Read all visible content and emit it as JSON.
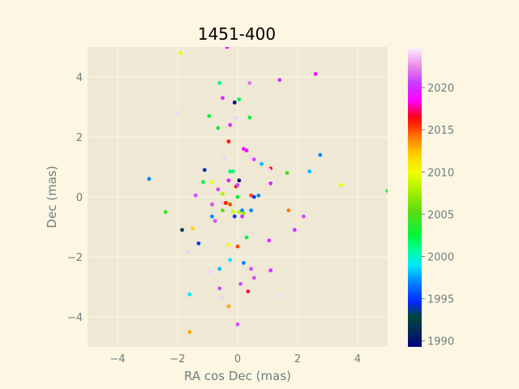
{
  "chart_data": {
    "type": "scatter",
    "title": "1451-400",
    "xlabel": "RA cos Dec (mas)",
    "ylabel": "Dec (mas)",
    "xlim": [
      -5,
      5
    ],
    "ylim": [
      -5,
      5
    ],
    "xticks": [
      "−4",
      "−2",
      "0",
      "2",
      "4"
    ],
    "yticks": [
      "−4",
      "−2",
      "0",
      "2",
      "4"
    ],
    "grid": true,
    "colorbar": {
      "range": [
        1989.3,
        2024.8
      ],
      "ticks": [
        "1990",
        "1995",
        "2000",
        "2005",
        "2010",
        "2015",
        "2020"
      ],
      "colormap": "gist_ncar"
    },
    "points": [
      {
        "x": -1.9,
        "y": 4.8,
        "year": 2010
      },
      {
        "x": -0.35,
        "y": 5.0,
        "year": 2019
      },
      {
        "x": -0.6,
        "y": 3.8,
        "year": 2001
      },
      {
        "x": -0.5,
        "y": 3.3,
        "year": 2020
      },
      {
        "x": 0.05,
        "y": 3.25,
        "year": 2002
      },
      {
        "x": 0.4,
        "y": 3.8,
        "year": 2022
      },
      {
        "x": 1.4,
        "y": 3.9,
        "year": 2020
      },
      {
        "x": 2.6,
        "y": 4.1,
        "year": 2019
      },
      {
        "x": -0.1,
        "y": 3.15,
        "year": 1990
      },
      {
        "x": -2.0,
        "y": 2.8,
        "year": 2024
      },
      {
        "x": -0.95,
        "y": 2.7,
        "year": 2003
      },
      {
        "x": -0.65,
        "y": 2.3,
        "year": 2003
      },
      {
        "x": -0.25,
        "y": 2.4,
        "year": 2020
      },
      {
        "x": -0.05,
        "y": 2.65,
        "year": 2024
      },
      {
        "x": 0.4,
        "y": 2.65,
        "year": 2003
      },
      {
        "x": -0.3,
        "y": 1.85,
        "year": 2016
      },
      {
        "x": 0.2,
        "y": 1.6,
        "year": 2019
      },
      {
        "x": 0.3,
        "y": 1.55,
        "year": 2019
      },
      {
        "x": 0.45,
        "y": 1.3,
        "year": 2024
      },
      {
        "x": 0.55,
        "y": 1.25,
        "year": 2021
      },
      {
        "x": 0.8,
        "y": 1.1,
        "year": 1998
      },
      {
        "x": 1.1,
        "y": 0.95,
        "year": 2016
      },
      {
        "x": 1.05,
        "y": 0.9,
        "year": 2024
      },
      {
        "x": 2.75,
        "y": 1.4,
        "year": 1997
      },
      {
        "x": 2.4,
        "y": 0.85,
        "year": 1998
      },
      {
        "x": 1.65,
        "y": 0.8,
        "year": 2005
      },
      {
        "x": -0.45,
        "y": 1.3,
        "year": 2024
      },
      {
        "x": -1.1,
        "y": 0.9,
        "year": 1994
      },
      {
        "x": -0.25,
        "y": 0.85,
        "year": 2002
      },
      {
        "x": -0.15,
        "y": 0.85,
        "year": 2001
      },
      {
        "x": 0.05,
        "y": 0.55,
        "year": 1990
      },
      {
        "x": -0.3,
        "y": 0.55,
        "year": 2019
      },
      {
        "x": -1.15,
        "y": 0.5,
        "year": 2003
      },
      {
        "x": -0.85,
        "y": 0.5,
        "year": 2010
      },
      {
        "x": -0.65,
        "y": 0.25,
        "year": 2021
      },
      {
        "x": -0.05,
        "y": 0.35,
        "year": 2016
      },
      {
        "x": 0.0,
        "y": 0.4,
        "year": 2021
      },
      {
        "x": 1.1,
        "y": 0.45,
        "year": 2020
      },
      {
        "x": 3.45,
        "y": 0.4,
        "year": 2010
      },
      {
        "x": 5.0,
        "y": 0.2,
        "year": 2003
      },
      {
        "x": -2.95,
        "y": 0.6,
        "year": 1997
      },
      {
        "x": -1.4,
        "y": 0.05,
        "year": 2021
      },
      {
        "x": -0.5,
        "y": 0.1,
        "year": 2008
      },
      {
        "x": 0.0,
        "y": 0.0,
        "year": 2003
      },
      {
        "x": 0.45,
        "y": 0.05,
        "year": 2015
      },
      {
        "x": 0.55,
        "y": 0.0,
        "year": 1995
      },
      {
        "x": 0.7,
        "y": 0.05,
        "year": 1997
      },
      {
        "x": -0.35,
        "y": -0.2,
        "year": 2007
      },
      {
        "x": -0.5,
        "y": -0.2,
        "year": 2024
      },
      {
        "x": -0.4,
        "y": -0.2,
        "year": 2016
      },
      {
        "x": -0.25,
        "y": -0.25,
        "year": 2015
      },
      {
        "x": -0.85,
        "y": -0.25,
        "year": 2021
      },
      {
        "x": -2.4,
        "y": -0.5,
        "year": 2004
      },
      {
        "x": -0.5,
        "y": -0.45,
        "year": 2005
      },
      {
        "x": -0.15,
        "y": -0.5,
        "year": 2009
      },
      {
        "x": 0.05,
        "y": -0.5,
        "year": 2008
      },
      {
        "x": 0.15,
        "y": -0.45,
        "year": 1997
      },
      {
        "x": 0.2,
        "y": -0.55,
        "year": 2007
      },
      {
        "x": 0.45,
        "y": -0.45,
        "year": 1997
      },
      {
        "x": 0.15,
        "y": -0.65,
        "year": 2020
      },
      {
        "x": -0.1,
        "y": -0.65,
        "year": 1995
      },
      {
        "x": -0.85,
        "y": -0.65,
        "year": 1997
      },
      {
        "x": -0.75,
        "y": -0.8,
        "year": 2021
      },
      {
        "x": 1.7,
        "y": -0.45,
        "year": 2014
      },
      {
        "x": 2.2,
        "y": -0.65,
        "year": 2021
      },
      {
        "x": 1.9,
        "y": -1.1,
        "year": 2020
      },
      {
        "x": -1.85,
        "y": -1.1,
        "year": 1993
      },
      {
        "x": -1.5,
        "y": -1.05,
        "year": 2012
      },
      {
        "x": -1.3,
        "y": -1.55,
        "year": 1995
      },
      {
        "x": -1.65,
        "y": -1.85,
        "year": 2024
      },
      {
        "x": -0.3,
        "y": -1.6,
        "year": 2010
      },
      {
        "x": 0.0,
        "y": -1.65,
        "year": 2015
      },
      {
        "x": 0.3,
        "y": -1.35,
        "year": 2002
      },
      {
        "x": 1.05,
        "y": -1.45,
        "year": 2020
      },
      {
        "x": -0.25,
        "y": -2.1,
        "year": 1999
      },
      {
        "x": 0.2,
        "y": -2.2,
        "year": 1997
      },
      {
        "x": -0.95,
        "y": -2.5,
        "year": 2024
      },
      {
        "x": -0.6,
        "y": -2.4,
        "year": 1998
      },
      {
        "x": 0.45,
        "y": -2.4,
        "year": 2021
      },
      {
        "x": 1.1,
        "y": -2.45,
        "year": 2020
      },
      {
        "x": 0.55,
        "y": -2.7,
        "year": 2021
      },
      {
        "x": 0.1,
        "y": -2.9,
        "year": 2021
      },
      {
        "x": -0.6,
        "y": -3.05,
        "year": 2021
      },
      {
        "x": 0.35,
        "y": -3.15,
        "year": 2017
      },
      {
        "x": -1.6,
        "y": -3.25,
        "year": 1999
      },
      {
        "x": -0.5,
        "y": -3.35,
        "year": 2024
      },
      {
        "x": 1.4,
        "y": -3.3,
        "year": 2024
      },
      {
        "x": -0.3,
        "y": -3.65,
        "year": 2013
      },
      {
        "x": 0.0,
        "y": -4.25,
        "year": 2021
      },
      {
        "x": -1.6,
        "y": -4.5,
        "year": 2013
      }
    ]
  }
}
